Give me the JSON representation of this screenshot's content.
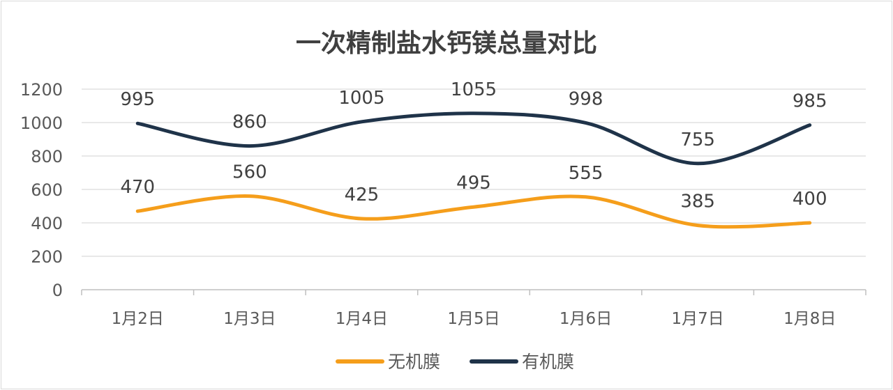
{
  "chart_data": {
    "type": "line",
    "smooth": true,
    "title": "一次精制盐水钙镁总量对比",
    "categories": [
      "1月2日",
      "1月3日",
      "1月4日",
      "1月5日",
      "1月6日",
      "1月7日",
      "1月8日"
    ],
    "series": [
      {
        "name": "无机膜",
        "color": "#F59E1B",
        "values": [
          470,
          560,
          425,
          495,
          555,
          385,
          400
        ]
      },
      {
        "name": "有机膜",
        "color": "#1F3349",
        "values": [
          995,
          860,
          1005,
          1055,
          998,
          755,
          985
        ]
      }
    ],
    "ylim": [
      0,
      1200
    ],
    "yticks": [
      0,
      200,
      400,
      600,
      800,
      1000,
      1200
    ],
    "grid": true,
    "legend": "bottom",
    "data_labels": true
  }
}
